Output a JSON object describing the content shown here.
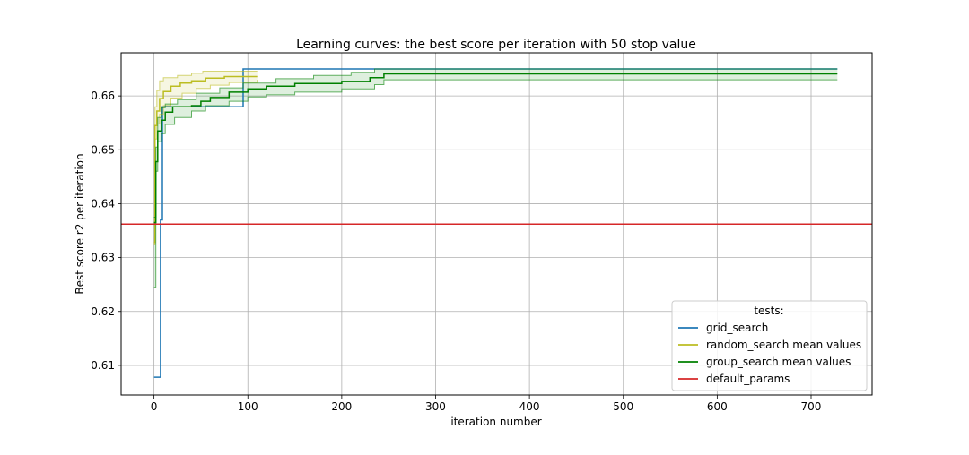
{
  "chart_data": {
    "type": "line",
    "title": "Learning curves: the best score per iteration with 50 stop value",
    "xlabel": "iteration number",
    "ylabel": "Best score r2 per iteration",
    "xlim": [
      -35,
      765
    ],
    "ylim": [
      0.6045,
      0.668
    ],
    "xticks": [
      0,
      100,
      200,
      300,
      400,
      500,
      600,
      700
    ],
    "yticks": [
      0.61,
      0.62,
      0.63,
      0.64,
      0.65,
      0.66
    ],
    "xtick_labels": [
      "0",
      "100",
      "200",
      "300",
      "400",
      "500",
      "600",
      "700"
    ],
    "ytick_labels": [
      "0.61",
      "0.62",
      "0.63",
      "0.64",
      "0.65",
      "0.66"
    ],
    "grid": true,
    "legend": {
      "title": "tests:",
      "placement": "lower-right"
    },
    "series": [
      {
        "name": "grid_search",
        "color": "#1f77b4",
        "style": "step",
        "points": [
          [
            0,
            0.6078
          ],
          [
            7,
            0.6078
          ],
          [
            7,
            0.637
          ],
          [
            9,
            0.637
          ],
          [
            9,
            0.658
          ],
          [
            95,
            0.658
          ],
          [
            95,
            0.665
          ],
          [
            728,
            0.665
          ]
        ]
      },
      {
        "name": "random_search mean values",
        "color": "#bcbd22",
        "style": "step",
        "mean": [
          [
            0,
            0.6328
          ],
          [
            1,
            0.6545
          ],
          [
            3,
            0.6572
          ],
          [
            6,
            0.6595
          ],
          [
            10,
            0.6608
          ],
          [
            18,
            0.6618
          ],
          [
            28,
            0.6624
          ],
          [
            40,
            0.6628
          ],
          [
            55,
            0.6633
          ],
          [
            75,
            0.6636
          ],
          [
            110,
            0.6636
          ]
        ],
        "upper": [
          [
            0,
            0.634
          ],
          [
            1,
            0.658
          ],
          [
            3,
            0.661
          ],
          [
            6,
            0.6628
          ],
          [
            10,
            0.6634
          ],
          [
            25,
            0.6638
          ],
          [
            40,
            0.6642
          ],
          [
            52,
            0.6646
          ],
          [
            110,
            0.6646
          ]
        ],
        "lower": [
          [
            0,
            0.6325
          ],
          [
            1,
            0.652
          ],
          [
            3,
            0.6548
          ],
          [
            6,
            0.6566
          ],
          [
            10,
            0.6582
          ],
          [
            18,
            0.6596
          ],
          [
            30,
            0.6605
          ],
          [
            45,
            0.6614
          ],
          [
            60,
            0.662
          ],
          [
            80,
            0.6625
          ],
          [
            110,
            0.663
          ]
        ]
      },
      {
        "name": "group_search mean values",
        "color": "#008000",
        "style": "step",
        "mean": [
          [
            0,
            0.6365
          ],
          [
            2,
            0.6478
          ],
          [
            4,
            0.6535
          ],
          [
            8,
            0.6555
          ],
          [
            12,
            0.657
          ],
          [
            20,
            0.658
          ],
          [
            40,
            0.6582
          ],
          [
            50,
            0.659
          ],
          [
            60,
            0.6597
          ],
          [
            80,
            0.6607
          ],
          [
            100,
            0.6613
          ],
          [
            120,
            0.6618
          ],
          [
            150,
            0.6623
          ],
          [
            200,
            0.6627
          ],
          [
            230,
            0.6634
          ],
          [
            245,
            0.6641
          ],
          [
            728,
            0.6641
          ]
        ],
        "upper": [
          [
            0,
            0.6375
          ],
          [
            2,
            0.6505
          ],
          [
            4,
            0.656
          ],
          [
            8,
            0.6578
          ],
          [
            12,
            0.6585
          ],
          [
            25,
            0.6593
          ],
          [
            45,
            0.6605
          ],
          [
            70,
            0.6615
          ],
          [
            95,
            0.6624
          ],
          [
            130,
            0.6632
          ],
          [
            170,
            0.6638
          ],
          [
            210,
            0.6644
          ],
          [
            235,
            0.665
          ],
          [
            728,
            0.665
          ]
        ],
        "lower": [
          [
            0,
            0.6245
          ],
          [
            2,
            0.646
          ],
          [
            4,
            0.6515
          ],
          [
            8,
            0.653
          ],
          [
            12,
            0.6547
          ],
          [
            22,
            0.656
          ],
          [
            40,
            0.6572
          ],
          [
            55,
            0.6582
          ],
          [
            80,
            0.659
          ],
          [
            100,
            0.6598
          ],
          [
            120,
            0.6602
          ],
          [
            150,
            0.6607
          ],
          [
            200,
            0.6613
          ],
          [
            235,
            0.6621
          ],
          [
            245,
            0.663
          ],
          [
            728,
            0.663
          ]
        ]
      },
      {
        "name": "default_params",
        "color": "#d62728",
        "style": "hline",
        "y": 0.6362
      }
    ]
  }
}
